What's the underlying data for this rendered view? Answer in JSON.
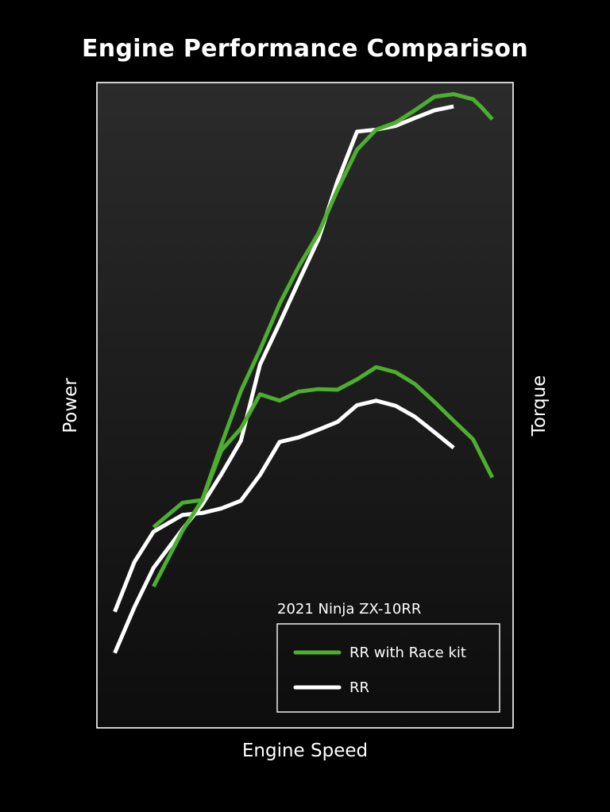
{
  "colors": {
    "background": "#000000",
    "race_kit": "#4caf2e",
    "stock": "#ffffff"
  },
  "chart_data": {
    "type": "line",
    "title": "Engine Performance Comparison",
    "xlabel": "Engine Speed",
    "ylabel_left": "Power",
    "ylabel_right": "Torque",
    "axes_ticks": false,
    "grid": false,
    "legend": {
      "title": "2021 Ninja ZX-10RR",
      "placement": "bottom-right",
      "entries": [
        {
          "label": "RR with Race kit",
          "color": "#4caf2e"
        },
        {
          "label": "RR",
          "color": "#ffffff"
        }
      ]
    },
    "xlim": [
      0,
      100
    ],
    "ylim": [
      0,
      100
    ],
    "series": [
      {
        "name": "RR with Race kit",
        "measure": "Power",
        "color": "#4caf2e",
        "x": [
          13.6,
          20.6,
          25.3,
          29.9,
          34.6,
          39.2,
          43.9,
          48.5,
          53.2,
          57.8,
          62.5,
          67.1,
          71.8,
          76.4,
          81.1,
          85.7,
          90.4,
          92.5,
          95
        ],
        "y": [
          21.9,
          30.6,
          35.3,
          43.9,
          52.2,
          58.6,
          65.7,
          71.5,
          76.6,
          83.4,
          89.6,
          92.7,
          93.8,
          95.7,
          97.8,
          98.2,
          97.4,
          96.1,
          94.3
        ]
      },
      {
        "name": "RR",
        "measure": "Power",
        "color": "#ffffff",
        "x": [
          4.3,
          9.0,
          13.6,
          20.6,
          25.3,
          29.9,
          34.6,
          39.2,
          43.9,
          48.5,
          53.2,
          57.8,
          62.5,
          67.1,
          71.8,
          76.4,
          81.1,
          85.7
        ],
        "y": [
          11.6,
          18.7,
          24.8,
          30.8,
          34.6,
          39.3,
          44.5,
          56.3,
          62.7,
          69.2,
          75.7,
          84.7,
          92.4,
          92.7,
          93.3,
          94.5,
          95.7,
          96.3
        ]
      },
      {
        "name": "RR with Race kit",
        "measure": "Torque",
        "color": "#4caf2e",
        "x": [
          13.6,
          20.6,
          25.3,
          29.9,
          34.6,
          39.2,
          43.9,
          48.5,
          53.2,
          57.8,
          62.5,
          67.1,
          71.8,
          76.4,
          81.1,
          85.7,
          90.4,
          95
        ],
        "y": [
          31.1,
          34.9,
          35.3,
          43.0,
          46.4,
          51.7,
          50.7,
          52.1,
          52.5,
          52.4,
          54.0,
          55.9,
          55.1,
          53.3,
          50.5,
          47.6,
          44.7,
          38.8
        ]
      },
      {
        "name": "RR",
        "measure": "Torque",
        "color": "#ffffff",
        "x": [
          4.3,
          9.0,
          13.6,
          20.6,
          25.3,
          29.9,
          34.6,
          39.2,
          43.9,
          48.5,
          53.2,
          57.8,
          62.5,
          67.1,
          71.8,
          76.4,
          81.1,
          85.7
        ],
        "y": [
          18.0,
          25.7,
          30.4,
          33.0,
          33.3,
          34.0,
          35.2,
          39.2,
          44.3,
          45.0,
          46.2,
          47.4,
          50.0,
          50.7,
          49.9,
          48.2,
          45.8,
          43.4
        ]
      }
    ]
  }
}
